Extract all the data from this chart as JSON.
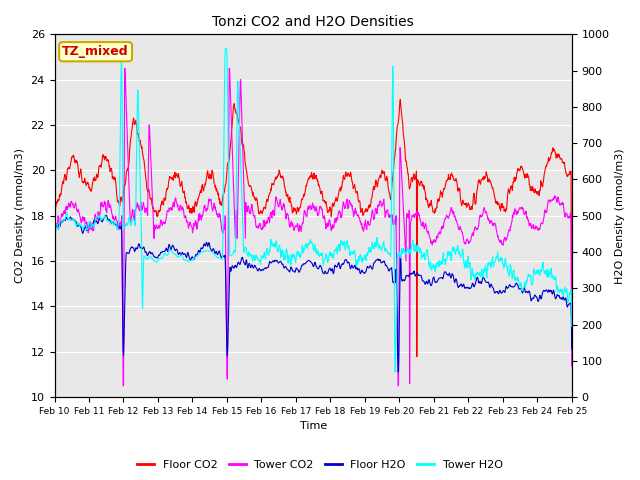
{
  "title": "Tonzi CO2 and H2O Densities",
  "xlabel": "Time",
  "ylabel_left": "CO2 Density (mmol/m3)",
  "ylabel_right": "H2O Density (mmol/m3)",
  "ylim_left": [
    10,
    26
  ],
  "ylim_right": [
    0,
    1000
  ],
  "annotation_text": "TZ_mixed",
  "annotation_color": "#cc0000",
  "annotation_bg": "#ffffcc",
  "annotation_border": "#ccaa00",
  "xtick_labels": [
    "Feb 10",
    "Feb 11",
    "Feb 12",
    "Feb 13",
    "Feb 14",
    "Feb 15",
    "Feb 16",
    "Feb 17",
    "Feb 18",
    "Feb 19",
    "Feb 20",
    "Feb 21",
    "Feb 22",
    "Feb 23",
    "Feb 24",
    "Feb 25"
  ],
  "colors": {
    "floor_co2": "#ff0000",
    "tower_co2": "#ff00ff",
    "floor_h2o": "#0000cc",
    "tower_h2o": "#00ffff"
  },
  "legend_labels": [
    "Floor CO2",
    "Tower CO2",
    "Floor H2O",
    "Tower H2O"
  ],
  "plot_bg_color": "#e8e8e8",
  "fig_bg_color": "#f0f0f0",
  "grid_color": "#ffffff",
  "linewidth": 0.8
}
